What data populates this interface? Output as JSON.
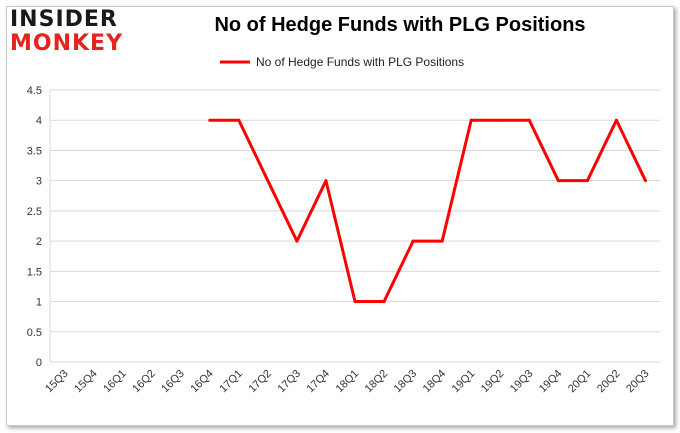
{
  "logo": {
    "line1": "INSIDER",
    "line2": "MONKEY"
  },
  "colors": {
    "line": "#ff0000",
    "grid": "#d9d9d9",
    "logo_red": "#e6231f"
  },
  "chart_data": {
    "type": "line",
    "title": "No of Hedge Funds with PLG Positions",
    "xlabel": "",
    "ylabel": "",
    "categories": [
      "15Q3",
      "15Q4",
      "16Q1",
      "16Q2",
      "16Q3",
      "16Q4",
      "17Q1",
      "17Q2",
      "17Q3",
      "17Q4",
      "18Q1",
      "18Q2",
      "18Q3",
      "18Q4",
      "19Q1",
      "19Q2",
      "19Q3",
      "19Q4",
      "20Q1",
      "20Q2",
      "20Q3"
    ],
    "yticks": [
      "0",
      "0.5",
      "1",
      "1.5",
      "2",
      "2.5",
      "3",
      "3.5",
      "4",
      "4.5"
    ],
    "ylim": [
      0,
      4.5
    ],
    "grid": true,
    "legend_position": "top-center",
    "series": [
      {
        "name": "No of Hedge Funds with PLG Positions",
        "values": [
          null,
          null,
          null,
          null,
          null,
          4,
          4,
          3,
          2,
          3,
          1,
          1,
          2,
          2,
          4,
          4,
          4,
          3,
          3,
          4,
          3
        ]
      }
    ]
  }
}
